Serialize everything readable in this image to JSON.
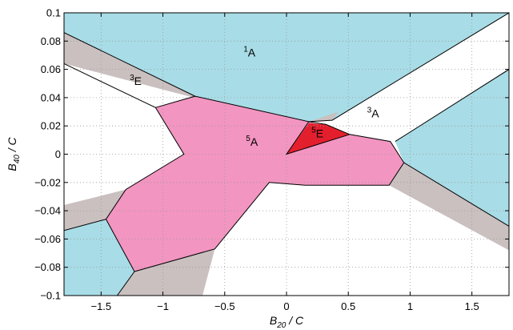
{
  "chart_data": {
    "type": "phase-diagram",
    "xlabel": {
      "main": "B",
      "sub": "20",
      "rest": " / C"
    },
    "ylabel": {
      "main": "B",
      "sub": "40",
      "rest": " / C"
    },
    "xlim": [
      -1.8,
      1.8
    ],
    "ylim": [
      -0.1,
      0.1
    ],
    "xticks": [
      -1.5,
      -1,
      -0.5,
      0,
      0.5,
      1,
      1.5
    ],
    "xtick_labels": [
      "−1.5",
      "−1",
      "−0.5",
      "0",
      "0.5",
      "1",
      "1.5"
    ],
    "yticks": [
      -0.1,
      -0.08,
      -0.06,
      -0.04,
      -0.02,
      0,
      0.02,
      0.04,
      0.06,
      0.08,
      0.1
    ],
    "ytick_labels": [
      "−0.1",
      "−0.08",
      "−0.06",
      "−0.04",
      "−0.02",
      "0",
      "0.02",
      "0.04",
      "0.06",
      "0.08",
      "0.1"
    ],
    "grid": true,
    "colors": {
      "1A": "#a8dce6",
      "3E": "#c9c0bf",
      "5A": "#f295c0",
      "5E": "#e41f2d",
      "3A": "#ffffff"
    },
    "regions": [
      {
        "name": "1A-top",
        "color_key": "1A",
        "points": [
          [
            -1.8,
            0.1
          ],
          [
            1.8,
            0.1
          ],
          [
            1.8,
            0.1
          ],
          [
            0.37,
            0.024
          ],
          [
            0.18,
            0.023
          ],
          [
            -0.74,
            0.041
          ],
          [
            -1.8,
            0.086
          ]
        ]
      },
      {
        "name": "1A-right",
        "color_key": "1A",
        "points": [
          [
            0.88,
            0.009
          ],
          [
            1.8,
            0.06
          ],
          [
            1.8,
            -0.051
          ],
          [
            0.95,
            -0.006
          ]
        ]
      },
      {
        "name": "1A-bottom-left",
        "color_key": "1A",
        "points": [
          [
            -1.8,
            -0.1
          ],
          [
            -1.8,
            -0.054
          ],
          [
            -1.46,
            -0.046
          ],
          [
            -1.23,
            -0.083
          ],
          [
            -1.37,
            -0.1
          ]
        ]
      },
      {
        "name": "3E-band-upper-left",
        "color_key": "3E",
        "points": [
          [
            -1.8,
            0.086
          ],
          [
            -0.74,
            0.041
          ],
          [
            -0.75,
            0.04
          ],
          [
            -1.8,
            0.064
          ]
        ]
      },
      {
        "name": "3E-band-lower-right",
        "color_key": "3E",
        "points": [
          [
            0.95,
            -0.006
          ],
          [
            1.8,
            -0.051
          ],
          [
            1.8,
            -0.068
          ],
          [
            0.83,
            -0.022
          ]
        ]
      },
      {
        "name": "3E-band-lower-left",
        "color_key": "3E",
        "points": [
          [
            -1.8,
            -0.036
          ],
          [
            -1.3,
            -0.025
          ],
          [
            -1.46,
            -0.046
          ],
          [
            -1.8,
            -0.054
          ]
        ]
      },
      {
        "name": "3E-band-bottom",
        "color_key": "3E",
        "points": [
          [
            -1.23,
            -0.083
          ],
          [
            -0.58,
            -0.067
          ],
          [
            -0.68,
            -0.1
          ],
          [
            -1.37,
            -0.1
          ]
        ]
      },
      {
        "name": "3E-band-top-right",
        "color_key": "3E",
        "points": [
          [
            0.18,
            0.023
          ],
          [
            0.37,
            0.024
          ],
          [
            0.42,
            0.03
          ],
          [
            0.22,
            0.024
          ]
        ]
      },
      {
        "name": "5A",
        "color_key": "5A",
        "points": [
          [
            -1.06,
            0.033
          ],
          [
            -0.74,
            0.041
          ],
          [
            0.18,
            0.023
          ],
          [
            0.51,
            0.014
          ],
          [
            0.84,
            0.009
          ],
          [
            0.95,
            -0.006
          ],
          [
            0.83,
            -0.022
          ],
          [
            0.15,
            -0.022
          ],
          [
            -0.14,
            -0.02
          ],
          [
            -0.58,
            -0.067
          ],
          [
            -1.23,
            -0.083
          ],
          [
            -1.46,
            -0.046
          ],
          [
            -1.3,
            -0.025
          ],
          [
            -0.83,
            0.0
          ]
        ]
      },
      {
        "name": "5E",
        "color_key": "5E",
        "points": [
          [
            0.0,
            0.0
          ],
          [
            0.18,
            0.022
          ],
          [
            0.32,
            0.021
          ],
          [
            0.51,
            0.014
          ]
        ]
      }
    ],
    "boundaries": [
      [
        [
          -1.8,
          0.086
        ],
        [
          -0.74,
          0.041
        ],
        [
          0.18,
          0.023
        ],
        [
          0.37,
          0.024
        ],
        [
          1.8,
          0.1
        ]
      ],
      [
        [
          -1.8,
          0.064
        ],
        [
          -1.06,
          0.033
        ],
        [
          -0.83,
          0.0
        ],
        [
          -1.3,
          -0.025
        ],
        [
          -1.46,
          -0.046
        ],
        [
          -1.8,
          -0.054
        ]
      ],
      [
        [
          -1.46,
          -0.046
        ],
        [
          -1.23,
          -0.083
        ],
        [
          -1.37,
          -0.1
        ]
      ],
      [
        [
          -1.23,
          -0.083
        ],
        [
          -0.58,
          -0.067
        ],
        [
          -0.14,
          -0.02
        ],
        [
          0.15,
          -0.022
        ],
        [
          0.83,
          -0.022
        ],
        [
          0.95,
          -0.006
        ],
        [
          1.8,
          -0.051
        ]
      ],
      [
        [
          -1.06,
          0.033
        ],
        [
          -0.74,
          0.041
        ]
      ],
      [
        [
          0.51,
          0.014
        ],
        [
          0.84,
          0.009
        ],
        [
          0.95,
          -0.006
        ]
      ],
      [
        [
          0.88,
          0.009
        ],
        [
          1.8,
          0.06
        ]
      ],
      [
        [
          0.18,
          0.023
        ],
        [
          0.0,
          0.0
        ],
        [
          0.51,
          0.014
        ],
        [
          0.32,
          0.021
        ],
        [
          0.18,
          0.023
        ]
      ]
    ],
    "labels": [
      {
        "sup": "1",
        "text": "A",
        "x": -0.3,
        "y": 0.069
      },
      {
        "sup": "3",
        "text": "E",
        "x": -1.22,
        "y": 0.049
      },
      {
        "sup": "5",
        "text": "A",
        "x": -0.28,
        "y": 0.006
      },
      {
        "sup": "5",
        "text": "E",
        "x": 0.25,
        "y": 0.012
      },
      {
        "sup": "3",
        "text": "A",
        "x": 0.7,
        "y": 0.026
      }
    ]
  }
}
